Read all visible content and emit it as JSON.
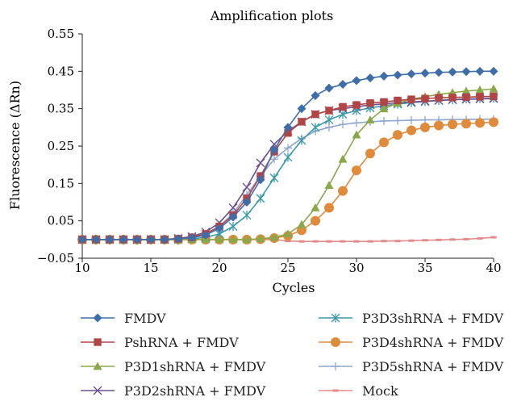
{
  "chart_data": {
    "type": "line",
    "title": "Amplification plots",
    "xlabel": "Cycles",
    "ylabel": "Fluorescence (ΔRn)",
    "xlim": [
      10,
      40
    ],
    "ylim": [
      -0.05,
      0.55
    ],
    "xticks": [
      "10",
      "15",
      "20",
      "25",
      "30",
      "35",
      "40"
    ],
    "yticks": [
      "0.55",
      "0.45",
      "0.35",
      "0.25",
      "0.15",
      "0.05",
      "−0.05"
    ],
    "grid": false,
    "legend_position": "bottom",
    "x": [
      10,
      11,
      12,
      13,
      14,
      15,
      16,
      17,
      18,
      19,
      20,
      21,
      22,
      23,
      24,
      25,
      26,
      27,
      28,
      29,
      30,
      31,
      32,
      33,
      34,
      35,
      36,
      37,
      38,
      39,
      40
    ],
    "series": [
      {
        "name": "FMDV",
        "marker": "diamond",
        "color": "#3e6da8",
        "values": [
          0,
          0,
          0,
          0,
          0,
          0,
          0,
          0.002,
          0.005,
          0.012,
          0.03,
          0.06,
          0.1,
          0.16,
          0.24,
          0.3,
          0.35,
          0.385,
          0.405,
          0.415,
          0.425,
          0.432,
          0.437,
          0.44,
          0.443,
          0.445,
          0.447,
          0.448,
          0.449,
          0.45,
          0.45
        ]
      },
      {
        "name": "PshRNA + FMDV",
        "marker": "square",
        "color": "#b14545",
        "values": [
          0,
          0,
          0,
          0,
          0,
          0,
          0,
          0.002,
          0.006,
          0.015,
          0.035,
          0.065,
          0.11,
          0.17,
          0.235,
          0.285,
          0.315,
          0.335,
          0.345,
          0.355,
          0.36,
          0.365,
          0.368,
          0.372,
          0.375,
          0.377,
          0.379,
          0.38,
          0.381,
          0.382,
          0.383
        ]
      },
      {
        "name": "P3D1shRNA + FMDV",
        "marker": "triangle",
        "color": "#8aa84a",
        "values": [
          0,
          0,
          0,
          0,
          0,
          0,
          0,
          0,
          0,
          0,
          0,
          0,
          0,
          0.002,
          0.006,
          0.015,
          0.04,
          0.085,
          0.145,
          0.215,
          0.28,
          0.32,
          0.35,
          0.365,
          0.375,
          0.382,
          0.388,
          0.393,
          0.397,
          0.4,
          0.403
        ]
      },
      {
        "name": "P3D2shRNA + FMDV",
        "marker": "x",
        "color": "#6d4f91",
        "values": [
          0,
          0,
          0,
          0,
          0,
          0,
          0,
          0.003,
          0.008,
          0.02,
          0.045,
          0.085,
          0.14,
          0.205,
          0.255,
          0.29,
          0.315,
          0.335,
          0.345,
          0.35,
          0.355,
          0.36,
          0.363,
          0.366,
          0.368,
          0.37,
          0.372,
          0.374,
          0.375,
          0.376,
          0.377
        ]
      },
      {
        "name": "P3D3shRNA + FMDV",
        "marker": "star",
        "color": "#3a9aa8",
        "values": [
          0,
          0,
          0,
          0,
          0,
          0,
          0,
          0,
          0.002,
          0.006,
          0.015,
          0.035,
          0.065,
          0.11,
          0.165,
          0.22,
          0.265,
          0.3,
          0.32,
          0.335,
          0.345,
          0.352,
          0.358,
          0.362,
          0.366,
          0.369,
          0.372,
          0.374,
          0.376,
          0.377,
          0.378
        ]
      },
      {
        "name": "P3D4shRNA + FMDV",
        "marker": "circle",
        "color": "#e08a3c",
        "values": [
          0,
          0,
          0,
          0,
          0,
          0,
          0,
          0,
          0,
          0,
          0,
          0,
          0,
          0.001,
          0.004,
          0.01,
          0.025,
          0.05,
          0.085,
          0.13,
          0.185,
          0.23,
          0.26,
          0.28,
          0.292,
          0.3,
          0.305,
          0.308,
          0.31,
          0.312,
          0.314
        ]
      },
      {
        "name": "P3D5shRNA + FMDV",
        "marker": "plus",
        "color": "#8fa6cf",
        "values": [
          0,
          0,
          0,
          0,
          0,
          0,
          0,
          0.002,
          0.006,
          0.015,
          0.035,
          0.07,
          0.12,
          0.17,
          0.215,
          0.245,
          0.27,
          0.29,
          0.3,
          0.308,
          0.312,
          0.315,
          0.317,
          0.318,
          0.319,
          0.32,
          0.32,
          0.321,
          0.321,
          0.322,
          0.322
        ]
      },
      {
        "name": "Mock",
        "marker": "dash",
        "color": "#e28b8b",
        "values": [
          0,
          0,
          0,
          0,
          0,
          0,
          0,
          0,
          0,
          0,
          0,
          0,
          0,
          0,
          0,
          -0.004,
          -0.005,
          -0.005,
          -0.005,
          -0.005,
          -0.005,
          -0.005,
          -0.004,
          -0.004,
          -0.003,
          -0.002,
          -0.001,
          0,
          0.001,
          0.003,
          0.006
        ]
      }
    ]
  }
}
